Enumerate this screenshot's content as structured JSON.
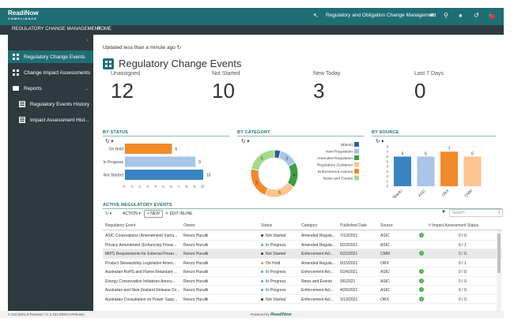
{
  "app": {
    "logo_main": "ReadiNow",
    "logo_sub": "COMPLIANCE",
    "header_title": "Regulatory and Obligation Change Management",
    "notification_count": "1"
  },
  "menu": {
    "items": [
      "REGULATORY CHANGE MANAGEMENT",
      "HOME"
    ]
  },
  "sidebar": {
    "items": [
      {
        "label": "Regulatory Change Events"
      },
      {
        "label": "Change Impact Assessments"
      },
      {
        "label": "Reports"
      },
      {
        "label": "Regulatory Events History"
      },
      {
        "label": "Impact Assessment Hist..."
      }
    ]
  },
  "page": {
    "updated": "Updated less than a minute ago",
    "title": "Regulatory Change Events"
  },
  "kpis": [
    {
      "label": "Unassigned",
      "value": "12"
    },
    {
      "label": "Not Started",
      "value": "10"
    },
    {
      "label": "New Today",
      "value": "3"
    },
    {
      "label": "Last 7 Days",
      "value": "0"
    }
  ],
  "sections": {
    "by_status": "BY STATUS",
    "by_category": "BY CATEGORY",
    "by_source": "BY SOURCE",
    "active_events": "ACTIVE REGULATORY EVENTS"
  },
  "colors": {
    "brand": "#1f6e73",
    "orange": "#f28a2b",
    "light_blue": "#a8c5e8",
    "blue": "#3a83c2"
  },
  "chart_data": [
    {
      "type": "bar",
      "orientation": "horizontal",
      "title": "BY STATUS",
      "categories": [
        "On Hold",
        "In Progress",
        "Not Started"
      ],
      "values": [
        6,
        9,
        10
      ],
      "colors": [
        "#f28a2b",
        "#a8c5e8",
        "#3a83c2"
      ],
      "xlim": [
        0,
        10
      ],
      "xticks": [
        "0",
        "1",
        "2",
        "3",
        "4",
        "5",
        "6",
        "7",
        "8",
        "9",
        "10"
      ]
    },
    {
      "type": "pie",
      "title": "BY CATEGORY",
      "categories": [
        "(Blank)",
        "New Regulation",
        "Amended Regulation",
        "Regulatory Guidance",
        "Enforcement Actions",
        "News and Events"
      ],
      "values": [
        1,
        3,
        4,
        5,
        5,
        5
      ],
      "colors": [
        "#2f5f97",
        "#a8c5e8",
        "#3d9e45",
        "#fbc58f",
        "#f28a2b",
        "#a6d98f"
      ],
      "legend": "right"
    },
    {
      "type": "bar",
      "title": "BY SOURCE",
      "categories": [
        "(Blank)",
        "ASIC",
        "ORX",
        "CMM"
      ],
      "values": [
        6,
        6,
        7,
        6
      ],
      "colors": [
        "#3a83c2",
        "#a8c5e8",
        "#f28a2b",
        "#fbc58f"
      ],
      "ylim": [
        0,
        8
      ],
      "yticks": [
        "0",
        "1",
        "2",
        "3",
        "4",
        "5",
        "6",
        "7",
        "8"
      ]
    }
  ],
  "table": {
    "toolbar": {
      "action": "ACTION",
      "new": "+ NEW",
      "edit": "EDIT INLINE",
      "search_placeholder": "Search"
    },
    "columns": [
      "Regulatory Event",
      "Owner",
      "Status",
      "Category",
      "Published Date",
      "Source",
      "# Impact Assessment Status"
    ],
    "rows": [
      {
        "event": "ASIC Corporations (Amendment) Instru...",
        "owner": "Renzo Huruitii",
        "status": "Not Started",
        "status_color": "#333333",
        "category": "Amended Regula...",
        "date": "7/10/2021",
        "source": "ASIC",
        "check": true,
        "ratio": "0 / 0."
      },
      {
        "event": "Privacy Amendment (Enhancing Privac...",
        "owner": "Renzo Huruitii",
        "status": "In Progress",
        "status_color": "#4aa3df",
        "category": "Amended Regula...",
        "date": "6/23/2021",
        "source": "ASIC",
        "check": false,
        "ratio": "0 / 1"
      },
      {
        "event": "MIPS Requirements for External Power...",
        "owner": "Renzo Huruitii",
        "status": "Not Started",
        "status_color": "#333333",
        "category": "Enforcement Act...",
        "date": "6/22/2021",
        "source": "CMM",
        "check": true,
        "ratio": "0 / 0."
      },
      {
        "event": "Product Stewardship Legislation Amen...",
        "owner": "Renzo Huruitii",
        "status": "On Hold",
        "status_color": "#f28a2b",
        "category": "Amended Regula...",
        "date": "6/15/2021",
        "source": "ORX",
        "check": false,
        "ratio": "0 / 1"
      },
      {
        "event": "Australian RoHS and Flame Retardant ...",
        "owner": "Renzo Huruitii",
        "status": "In Progress",
        "status_color": "#4aa3df",
        "category": "Enforcement Act...",
        "date": "5/24/2021",
        "source": "ASIC",
        "check": true,
        "ratio": "0 / 0."
      },
      {
        "event": "Energy Conservation Initiatives Annou...",
        "owner": "Renzo Huruitii",
        "status": "In Progress",
        "status_color": "#4aa3df",
        "category": "News and Events",
        "date": "5/6/2021",
        "source": "ASIC",
        "check": true,
        "ratio": "0 / 0."
      },
      {
        "event": "Australian and New Zealand Release Co...",
        "owner": "Renzo Huruitii",
        "status": "In Progress",
        "status_color": "#4aa3df",
        "category": "Enforcement Act...",
        "date": "4/26/2021",
        "source": "ASIC",
        "check": true,
        "ratio": "0 / 0."
      },
      {
        "event": "Australian Consultation on Power Supp...",
        "owner": "Renzo Huruitii",
        "status": "Not Started",
        "status_color": "#333333",
        "category": "Enforcement Act...",
        "date": "3/19/2021",
        "source": "ORX",
        "check": true,
        "ratio": "0 / 0."
      }
    ]
  },
  "footer": {
    "version": "2.152.5001.0-Release / C 2.152.5000.0-Release",
    "powered_by": "Powered by",
    "brand": "ReadiNow"
  }
}
